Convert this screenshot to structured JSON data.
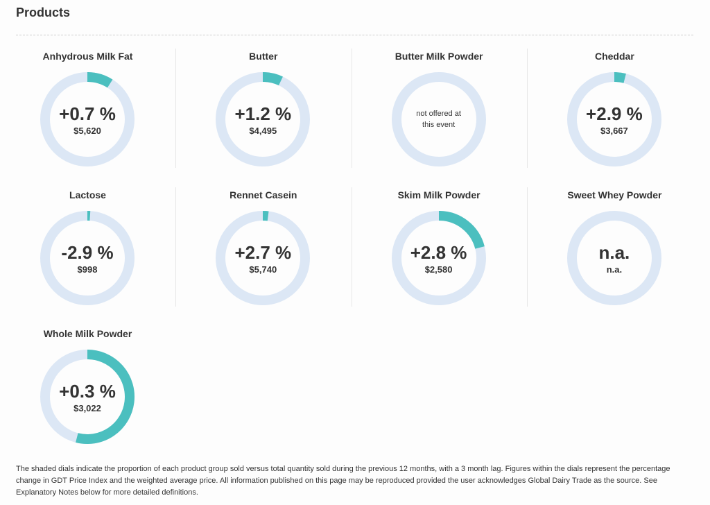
{
  "header": {
    "title": "Products"
  },
  "products": [
    {
      "name": "Anhydrous Milk Fat",
      "change": "+0.7 %",
      "price": "$5,620",
      "share": 0.09
    },
    {
      "name": "Butter",
      "change": "+1.2 %",
      "price": "$4,495",
      "share": 0.07
    },
    {
      "name": "Butter Milk Powder",
      "note": "not offered at this event"
    },
    {
      "name": "Cheddar",
      "change": "+2.9 %",
      "price": "$3,667",
      "share": 0.04
    },
    {
      "name": "Lactose",
      "change": "-2.9 %",
      "price": "$998",
      "share": 0.01
    },
    {
      "name": "Rennet Casein",
      "change": "+2.7 %",
      "price": "$5,740",
      "share": 0.02
    },
    {
      "name": "Skim Milk Powder",
      "change": "+2.8 %",
      "price": "$2,580",
      "share": 0.21
    },
    {
      "name": "Sweet Whey Powder",
      "change": "n.a.",
      "price": "n.a."
    },
    {
      "name": "Whole Milk Powder",
      "change": "+0.3 %",
      "price": "$3,022",
      "share": 0.54
    }
  ],
  "footer": {
    "text": "The shaded dials indicate the proportion of each product group sold versus total quantity sold during the previous 12 months, with a 3 month lag. Figures within the dials represent the percentage change in GDT Price Index and the weighted average price. All information published on this page may be reproduced provided the user acknowledges Global Dairy Trade as the source. See Explanatory Notes below for more detailed definitions."
  }
}
